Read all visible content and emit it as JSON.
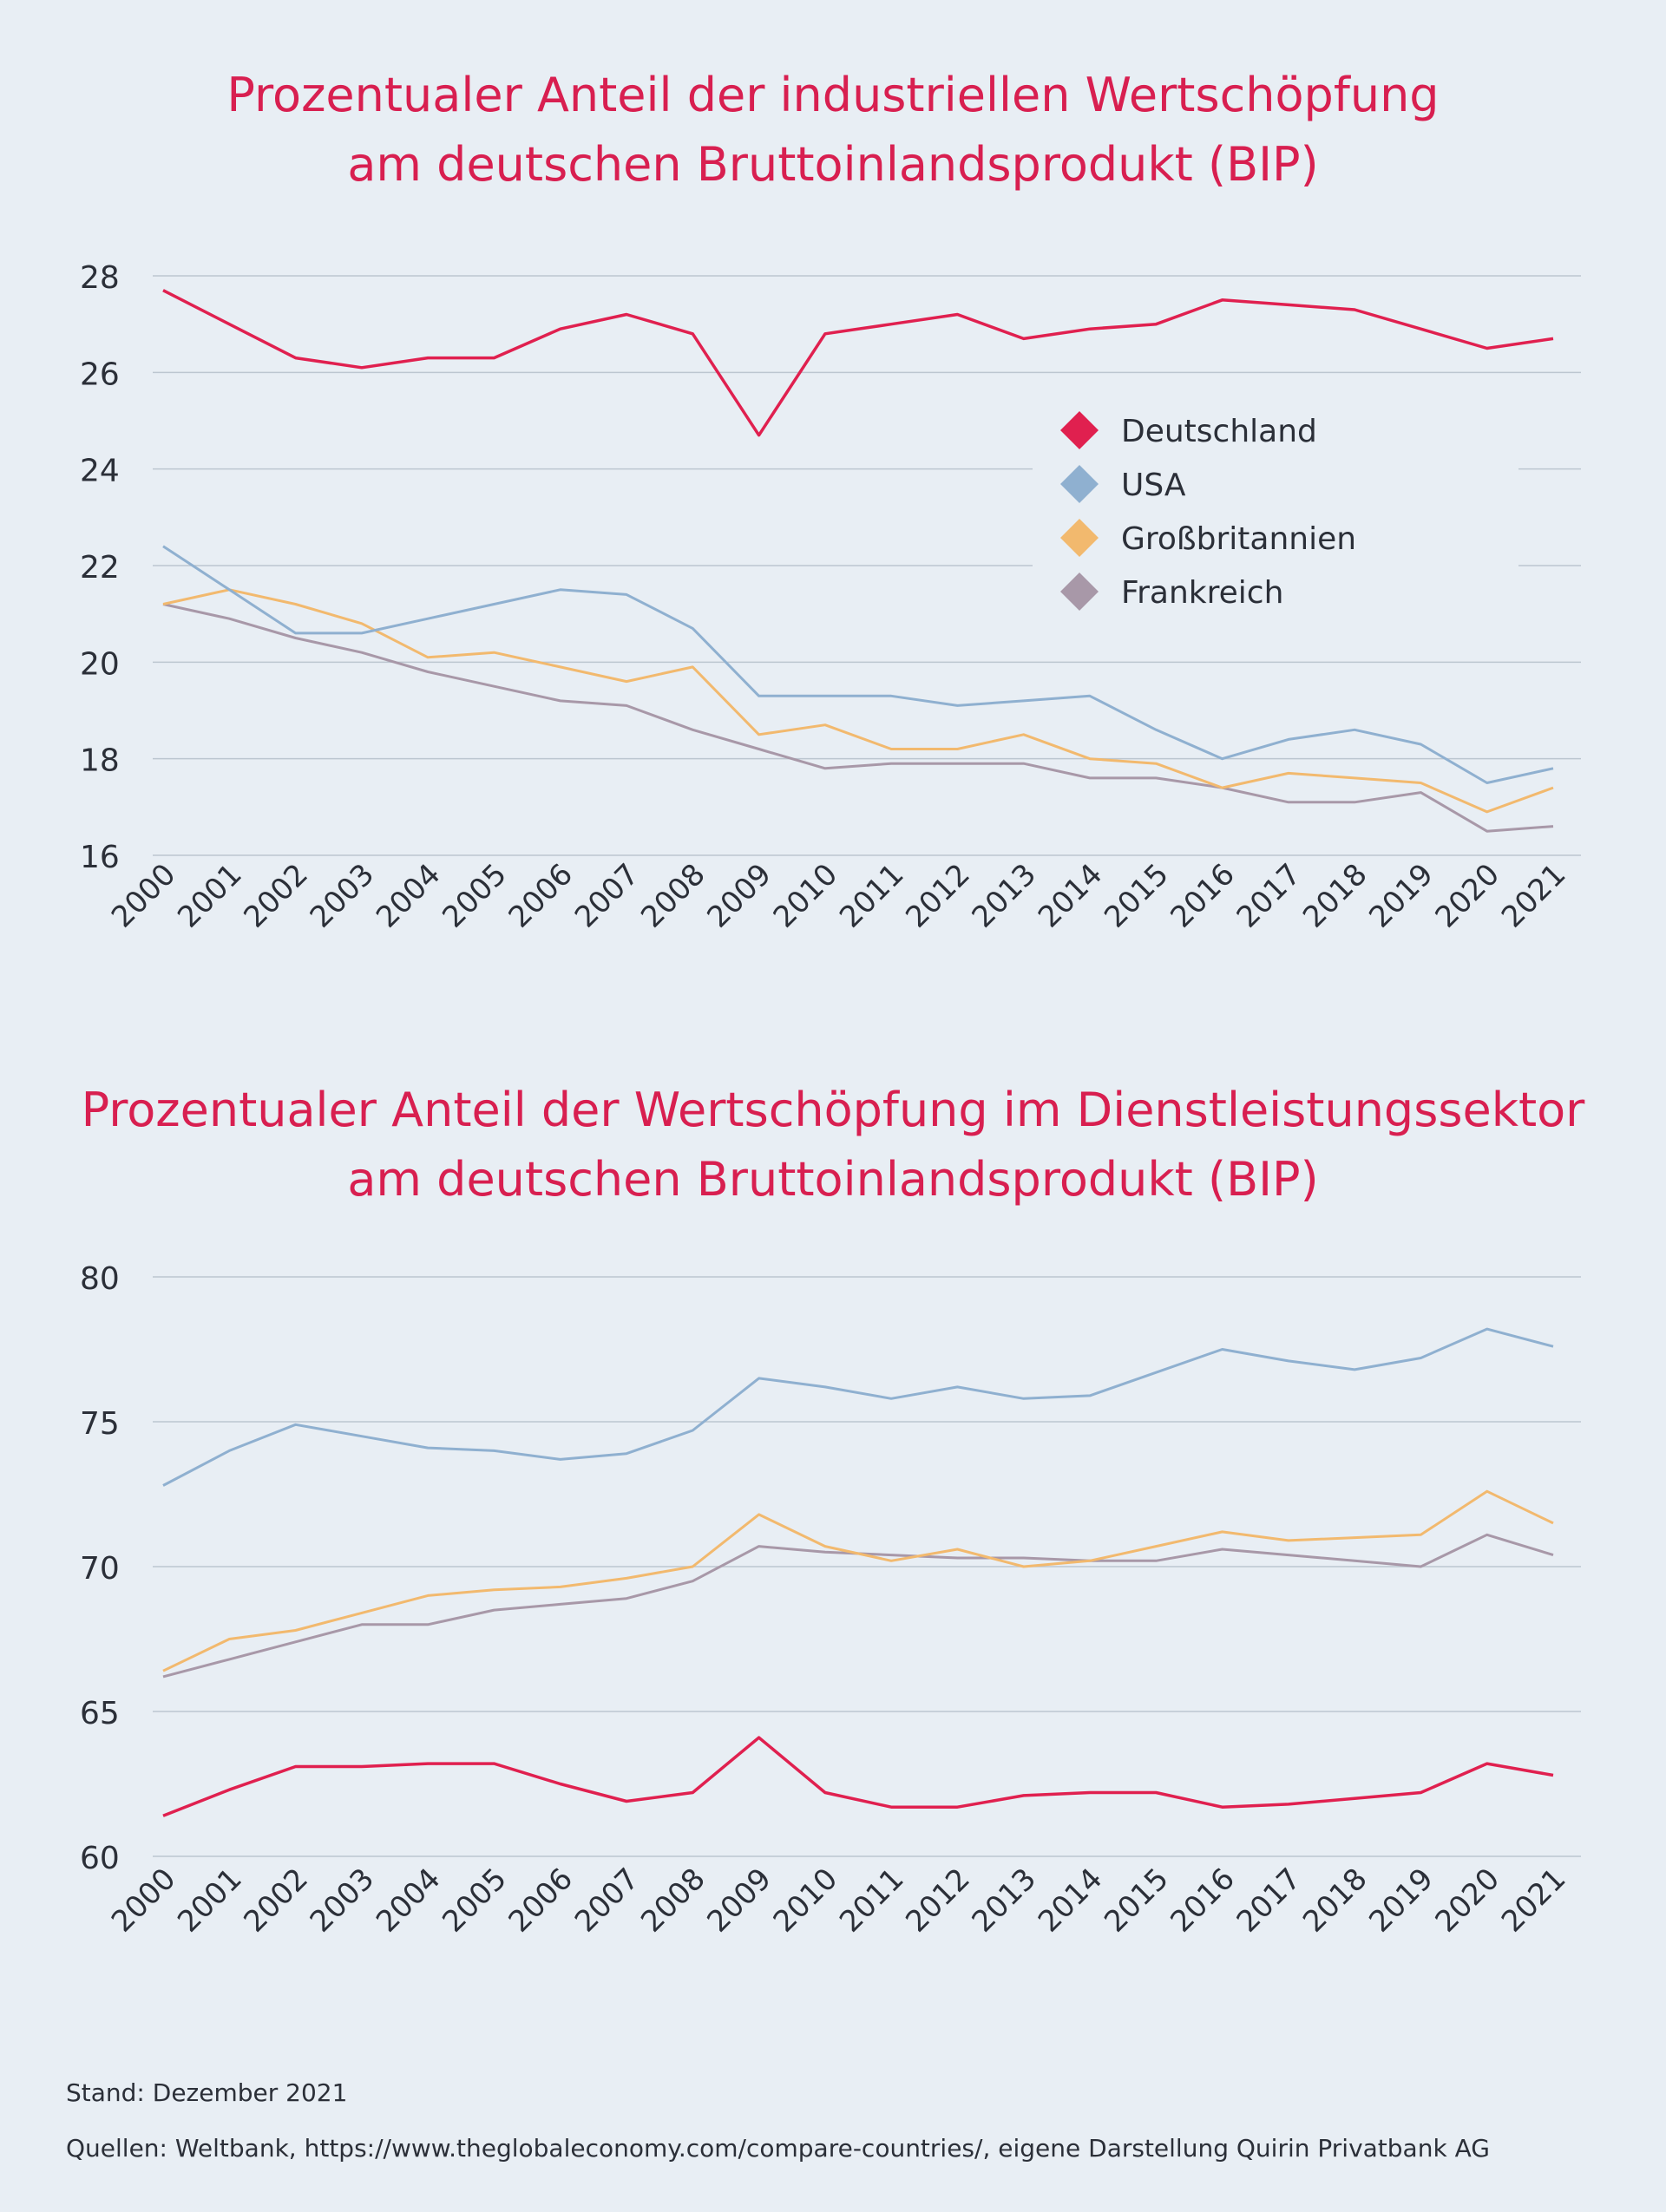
{
  "chart_data": [
    {
      "type": "line",
      "title_lines": [
        "Prozentualer Anteil der industriellen Wertschöpfung",
        "am deutschen Bruttoinlandsprodukt (BIP)"
      ],
      "xlabel": "",
      "ylabel": "",
      "x": [
        "2000",
        "2001",
        "2002",
        "2003",
        "2004",
        "2005",
        "2006",
        "2007",
        "2008",
        "2009",
        "2010",
        "2011",
        "2012",
        "2013",
        "2014",
        "2015",
        "2016",
        "2017",
        "2018",
        "2019",
        "2020",
        "2021"
      ],
      "ylim": [
        16,
        28
      ],
      "yticks": [
        16,
        18,
        20,
        22,
        24,
        26,
        28
      ],
      "grid": true,
      "legend": "right, upper-middle",
      "series": [
        {
          "name": "Deutschland",
          "color": "#e0204f",
          "values": [
            27.7,
            27.0,
            26.3,
            26.1,
            26.3,
            26.3,
            26.9,
            27.2,
            26.8,
            24.7,
            26.8,
            27.0,
            27.2,
            26.7,
            26.9,
            27.0,
            27.5,
            27.4,
            27.3,
            26.9,
            26.5,
            26.7
          ]
        },
        {
          "name": "USA",
          "color": "#8fb0d0",
          "values": [
            22.4,
            21.5,
            20.6,
            20.6,
            20.9,
            21.2,
            21.5,
            21.4,
            20.7,
            19.3,
            19.3,
            19.3,
            19.1,
            19.2,
            19.3,
            18.6,
            18.0,
            18.4,
            18.6,
            18.3,
            17.5,
            17.8
          ]
        },
        {
          "name": "Großbritannien",
          "color": "#f2b96e",
          "values": [
            21.2,
            21.5,
            21.2,
            20.8,
            20.1,
            20.2,
            19.9,
            19.6,
            19.9,
            18.5,
            18.7,
            18.2,
            18.2,
            18.5,
            18.0,
            17.9,
            17.4,
            17.7,
            17.6,
            17.5,
            16.9,
            17.4
          ]
        },
        {
          "name": "Frankreich",
          "color": "#a898a8",
          "values": [
            21.2,
            20.9,
            20.5,
            20.2,
            19.8,
            19.5,
            19.2,
            19.1,
            18.6,
            18.2,
            17.8,
            17.9,
            17.9,
            17.9,
            17.6,
            17.6,
            17.4,
            17.1,
            17.1,
            17.3,
            16.5,
            16.6
          ]
        }
      ]
    },
    {
      "type": "line",
      "title_lines": [
        "Prozentualer Anteil der Wertschöpfung im Dienstleistungssektor",
        "am deutschen Bruttoinlandsprodukt (BIP)"
      ],
      "xlabel": "",
      "ylabel": "",
      "x": [
        "2000",
        "2001",
        "2002",
        "2003",
        "2004",
        "2005",
        "2006",
        "2007",
        "2008",
        "2009",
        "2010",
        "2011",
        "2012",
        "2013",
        "2014",
        "2015",
        "2016",
        "2017",
        "2018",
        "2019",
        "2020",
        "2021"
      ],
      "ylim": [
        60,
        80
      ],
      "yticks": [
        60,
        65,
        70,
        75,
        80
      ],
      "grid": true,
      "series": [
        {
          "name": "Deutschland",
          "color": "#e0204f",
          "values": [
            61.4,
            62.3,
            63.1,
            63.1,
            63.2,
            63.2,
            62.5,
            61.9,
            62.2,
            64.1,
            62.2,
            61.7,
            61.7,
            62.1,
            62.2,
            62.2,
            61.7,
            61.8,
            62.0,
            62.2,
            63.2,
            62.8
          ]
        },
        {
          "name": "USA",
          "color": "#8fb0d0",
          "values": [
            72.8,
            74.0,
            74.9,
            74.5,
            74.1,
            74.0,
            73.7,
            73.9,
            74.7,
            76.5,
            76.2,
            75.8,
            76.2,
            75.8,
            75.9,
            76.7,
            77.5,
            77.1,
            76.8,
            77.2,
            78.2,
            77.6
          ]
        },
        {
          "name": "Großbritannien",
          "color": "#f2b96e",
          "values": [
            66.4,
            67.5,
            67.8,
            68.4,
            69.0,
            69.2,
            69.3,
            69.6,
            70.0,
            71.8,
            70.7,
            70.2,
            70.6,
            70.0,
            70.2,
            70.7,
            71.2,
            70.9,
            71.0,
            71.1,
            72.6,
            71.5
          ]
        },
        {
          "name": "Frankreich",
          "color": "#a898a8",
          "values": [
            66.2,
            66.8,
            67.4,
            68.0,
            68.0,
            68.5,
            68.7,
            68.9,
            69.5,
            70.7,
            70.5,
            70.4,
            70.3,
            70.3,
            70.2,
            70.2,
            70.6,
            70.4,
            70.2,
            70.0,
            71.1,
            70.4
          ]
        }
      ]
    }
  ],
  "footer": {
    "stand": "Stand: Dezember 2021",
    "sources": "Quellen: Weltbank, https://www.theglobaleconomy.com/compare-countries/, eigene Darstellung Quirin Privatbank AG"
  }
}
